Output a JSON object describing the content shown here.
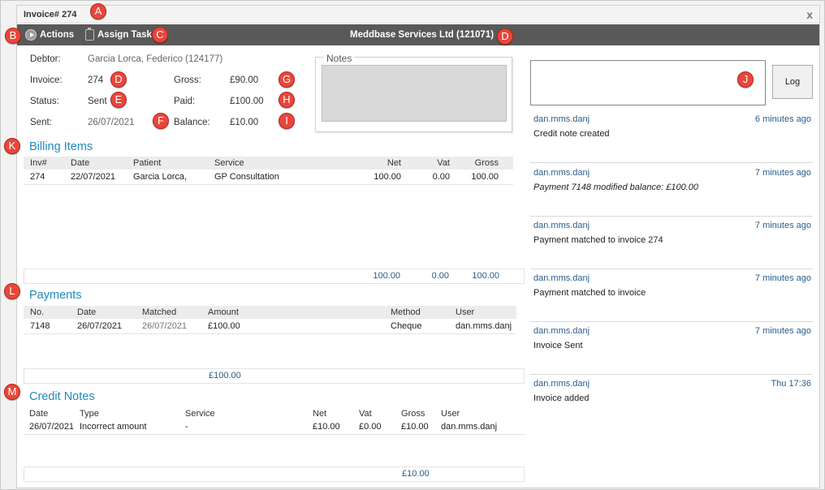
{
  "window": {
    "title": "Invoice# 274",
    "close_glyph": "x"
  },
  "toolbar": {
    "actions_label": "Actions",
    "assign_label": "Assign Task",
    "company": "Meddbase Services Ltd (121071)"
  },
  "markers": [
    "A",
    "B",
    "C",
    "D",
    "D",
    "E",
    "F",
    "G",
    "H",
    "I",
    "J",
    "K",
    "L",
    "M"
  ],
  "info": {
    "debtor_label": "Debtor:",
    "debtor_value": "Garcia Lorca, Federico (124177)",
    "invoice_label": "Invoice:",
    "invoice_value": "274",
    "status_label": "Status:",
    "status_value": "Sent",
    "sent_label": "Sent:",
    "sent_value": "26/07/2021",
    "gross_label": "Gross:",
    "gross_value": "£90.00",
    "paid_label": "Paid:",
    "paid_value": "£100.00",
    "balance_label": "Balance:",
    "balance_value": "£10.00"
  },
  "notes": {
    "legend": "Notes"
  },
  "billing": {
    "title": "Billing Items",
    "headers": [
      "Inv#",
      "Date",
      "Patient",
      "Service",
      "Net",
      "Vat",
      "Gross"
    ],
    "rows": [
      [
        "274",
        "22/07/2021",
        "Garcia Lorca,",
        "GP Consultation",
        "100.00",
        "0.00",
        "100.00"
      ]
    ],
    "totals": [
      "100.00",
      "0.00",
      "100.00"
    ]
  },
  "payments": {
    "title": "Payments",
    "headers": [
      "No.",
      "Date",
      "Matched",
      "Amount",
      "Method",
      "User"
    ],
    "rows": [
      [
        "7148",
        "26/07/2021",
        "26/07/2021",
        "£100.00",
        "Cheque",
        "dan.mms.danj"
      ]
    ],
    "total": "£100.00"
  },
  "credit_notes": {
    "title": "Credit Notes",
    "headers": [
      "Date",
      "Type",
      "Service",
      "Net",
      "Vat",
      "Gross",
      "User"
    ],
    "rows": [
      [
        "26/07/2021",
        "Incorrect amount",
        "-",
        "£10.00",
        "£0.00",
        "£10.00",
        "dan.mms.danj"
      ]
    ],
    "total": "£10.00"
  },
  "log": {
    "button_label": "Log",
    "entries": [
      {
        "user": "dan.mms.danj",
        "time": "6 minutes ago",
        "message": "Credit note created"
      },
      {
        "user": "dan.mms.danj",
        "time": "7 minutes ago",
        "message": "Payment 7148 modified balance: £100.00"
      },
      {
        "user": "dan.mms.danj",
        "time": "7 minutes ago",
        "message": "Payment matched to invoice 274"
      },
      {
        "user": "dan.mms.danj",
        "time": "7 minutes ago",
        "message": "Payment matched to invoice"
      },
      {
        "user": "dan.mms.danj",
        "time": "7 minutes ago",
        "message": "Invoice Sent"
      },
      {
        "user": "dan.mms.danj",
        "time": "Thu 17:36",
        "message": "Invoice added"
      }
    ]
  }
}
